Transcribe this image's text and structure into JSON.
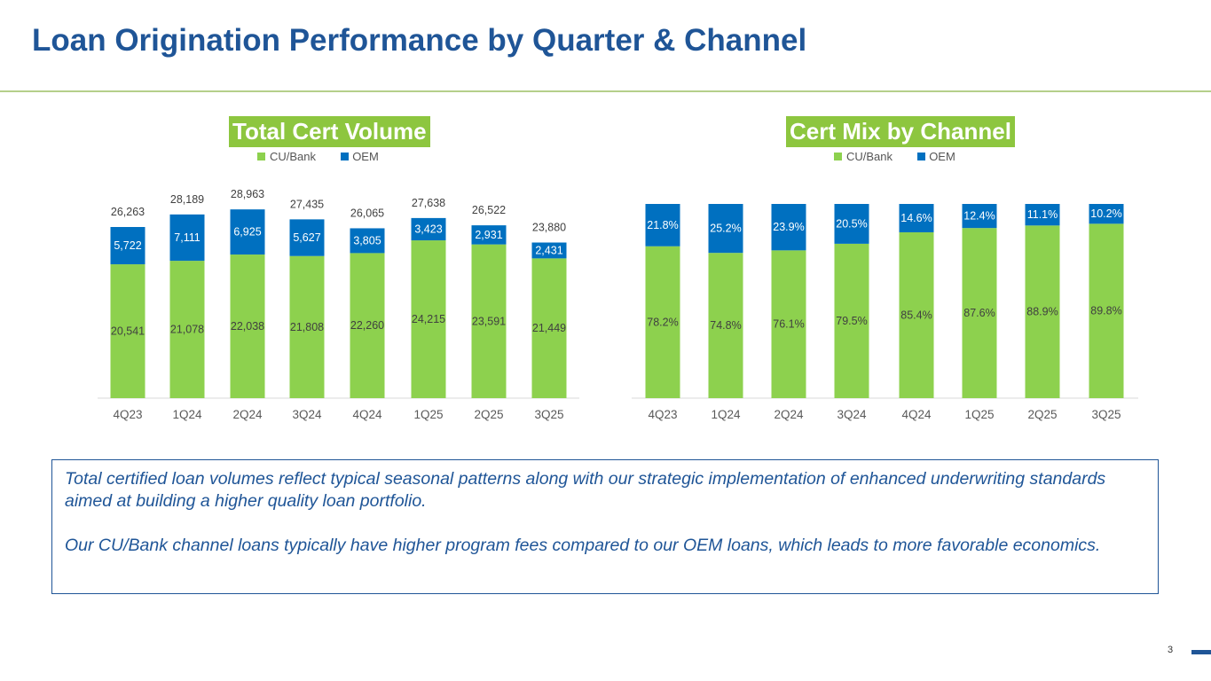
{
  "title": "Loan Origination Performance by Quarter & Channel",
  "colors": {
    "cu_bank": "#8DD14E",
    "oem": "#0070C0",
    "title": "#1F5597",
    "header_bg": "#8DC63F"
  },
  "chart_data": [
    {
      "type": "bar",
      "stacked": true,
      "title": "Total Cert Volume",
      "legend": "top",
      "grid": false,
      "categories": [
        "4Q23",
        "1Q24",
        "2Q24",
        "3Q24",
        "4Q24",
        "1Q25",
        "2Q25",
        "3Q25"
      ],
      "series": [
        {
          "name": "CU/Bank",
          "values": [
            20541,
            21078,
            22038,
            21808,
            22260,
            24215,
            23591,
            21449
          ],
          "labels": [
            "20,541",
            "21,078",
            "22,038",
            "21,808",
            "22,260",
            "24,215",
            "23,591",
            "21,449"
          ]
        },
        {
          "name": "OEM",
          "values": [
            5722,
            7111,
            6925,
            5627,
            3805,
            3423,
            2931,
            2431
          ],
          "labels": [
            "5,722",
            "7,111",
            "6,925",
            "5,627",
            "3,805",
            "3,423",
            "2,931",
            "2,431"
          ]
        }
      ],
      "totals": [
        "26,263",
        "28,189",
        "28,963",
        "27,435",
        "26,065",
        "27,638",
        "26,522",
        "23,880"
      ]
    },
    {
      "type": "bar",
      "stacked": true,
      "title": "Cert Mix by Channel",
      "legend": "top",
      "grid": false,
      "categories": [
        "4Q23",
        "1Q24",
        "2Q24",
        "3Q24",
        "4Q24",
        "1Q25",
        "2Q25",
        "3Q25"
      ],
      "series": [
        {
          "name": "CU/Bank",
          "values": [
            78.2,
            74.8,
            76.1,
            79.5,
            85.4,
            87.6,
            88.9,
            89.8
          ],
          "labels": [
            "78.2%",
            "74.8%",
            "76.1%",
            "79.5%",
            "85.4%",
            "87.6%",
            "88.9%",
            "89.8%"
          ]
        },
        {
          "name": "OEM",
          "values": [
            21.8,
            25.2,
            23.9,
            20.5,
            14.6,
            12.4,
            11.1,
            10.2
          ],
          "labels": [
            "21.8%",
            "25.2%",
            "23.9%",
            "20.5%",
            "14.6%",
            "12.4%",
            "11.1%",
            "10.2%"
          ]
        }
      ]
    }
  ],
  "note": {
    "p1": "Total certified loan volumes reflect typical seasonal patterns along with our strategic implementation of enhanced underwriting standards aimed at building a higher quality loan portfolio.",
    "p2": "Our CU/Bank channel loans typically have higher program fees compared to our OEM loans, which leads to more favorable economics."
  },
  "page_number": "3"
}
